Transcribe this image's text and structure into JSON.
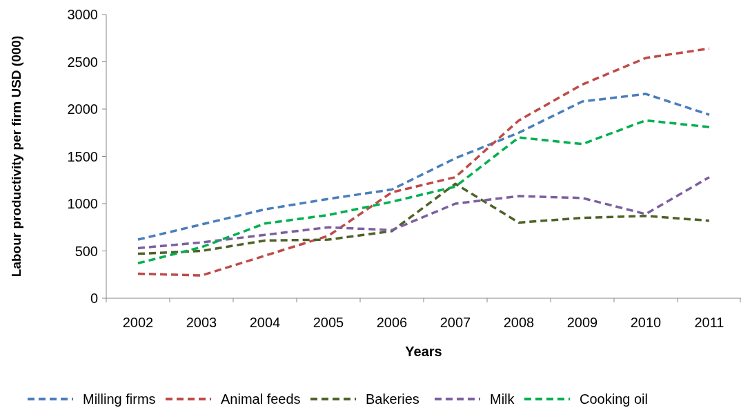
{
  "chart_data": {
    "type": "line",
    "xlabel": "Years",
    "ylabel": "Labour productivity per firm USD (000)",
    "categories": [
      "2002",
      "2003",
      "2004",
      "2005",
      "2006",
      "2007",
      "2008",
      "2009",
      "2010",
      "2011"
    ],
    "series": [
      {
        "name": "Milling firms",
        "color": "#4a7ebb",
        "values": [
          620,
          780,
          940,
          1050,
          1150,
          1480,
          1750,
          2080,
          2160,
          1940
        ]
      },
      {
        "name": "Animal feeds",
        "color": "#be4b48",
        "values": [
          260,
          240,
          450,
          660,
          1120,
          1280,
          1880,
          2260,
          2540,
          2640
        ]
      },
      {
        "name": "Bakeries",
        "color": "#4f6228",
        "values": [
          470,
          500,
          610,
          620,
          710,
          1210,
          800,
          850,
          870,
          820
        ]
      },
      {
        "name": "Milk",
        "color": "#7d5fa0",
        "values": [
          530,
          590,
          670,
          750,
          720,
          1000,
          1080,
          1060,
          890,
          1280
        ]
      },
      {
        "name": "Cooking oil",
        "color": "#00b050",
        "values": [
          370,
          540,
          790,
          880,
          1020,
          1180,
          1700,
          1630,
          1880,
          1810
        ]
      }
    ],
    "ylim": [
      0,
      3000
    ],
    "yticks": [
      0,
      500,
      1000,
      1500,
      2000,
      2500,
      3000
    ],
    "grid": false,
    "legend": "bottom",
    "line_style": "dashed"
  }
}
